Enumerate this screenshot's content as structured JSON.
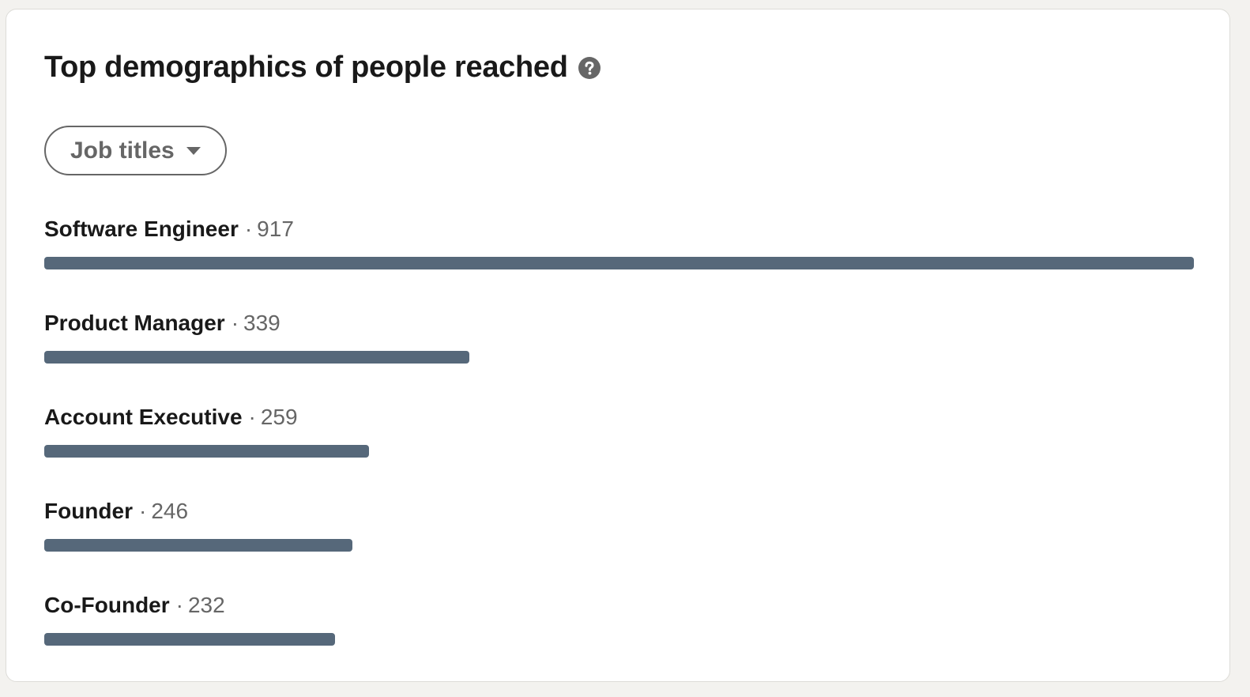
{
  "card": {
    "title": "Top demographics of people reached",
    "help_icon": "question-circle-icon",
    "filter": {
      "label": "Job titles",
      "icon": "caret-down-icon"
    }
  },
  "colors": {
    "bar": "#56687a",
    "title_text": "#1d1d1d",
    "muted_text": "#666666",
    "background": "#f3f2ef",
    "card": "#ffffff"
  },
  "chart_data": {
    "type": "bar",
    "orientation": "horizontal",
    "separator": "·",
    "categories": [
      "Software Engineer",
      "Product Manager",
      "Account Executive",
      "Founder",
      "Co-Founder"
    ],
    "values": [
      917,
      339,
      259,
      246,
      232
    ],
    "value_labels": [
      "917",
      "339",
      "259",
      "246",
      "232"
    ],
    "xlim": [
      0,
      917
    ]
  }
}
